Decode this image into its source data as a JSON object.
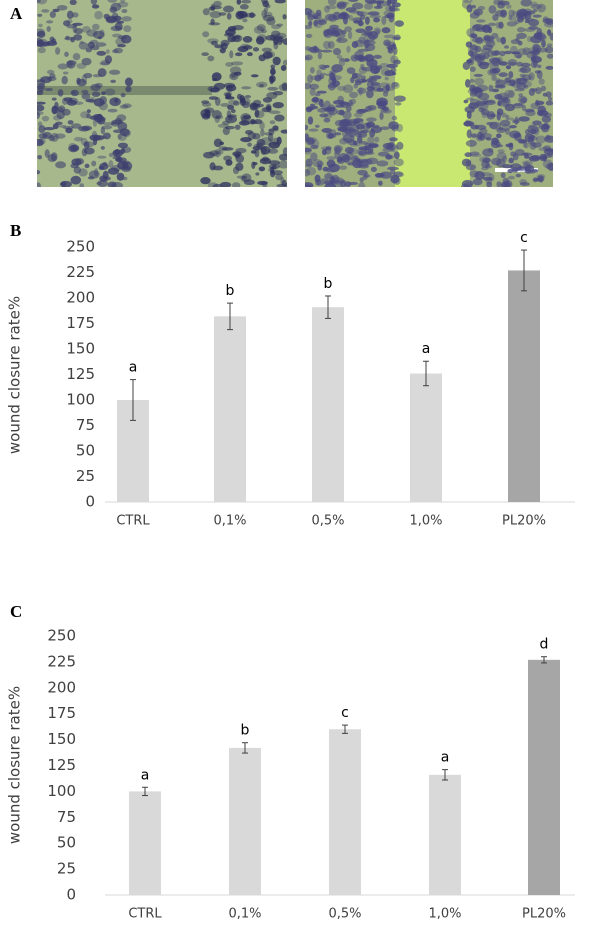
{
  "panel_labels": [
    "A",
    "B",
    "C"
  ],
  "chart_data": [
    {
      "type": "bar",
      "y_label": "wound closure rate%",
      "categories": [
        "CTRL",
        "0,1%",
        "0,5%",
        "1,0%",
        "PL20%"
      ],
      "values": [
        100,
        182,
        191,
        126,
        227
      ],
      "errors": [
        20,
        13,
        11,
        12,
        20
      ],
      "letters": [
        "a",
        "b",
        "b",
        "a",
        "c"
      ],
      "colors": [
        "#d9d9d9",
        "#d9d9d9",
        "#d9d9d9",
        "#d9d9d9",
        "#a6a6a6"
      ],
      "ylim": [
        0,
        250
      ],
      "yticks": [
        0,
        25,
        50,
        75,
        100,
        125,
        150,
        175,
        200,
        225,
        250
      ],
      "grid": false
    },
    {
      "type": "bar",
      "y_label": "wound closure rate%",
      "categories": [
        "CTRL",
        "0,1%",
        "0,5%",
        "1,0%",
        "PL20%"
      ],
      "values": [
        100,
        142,
        160,
        116,
        227
      ],
      "errors": [
        4,
        5,
        4,
        5,
        3
      ],
      "letters": [
        "a",
        "b",
        "c",
        "a",
        "d"
      ],
      "colors": [
        "#d9d9d9",
        "#d9d9d9",
        "#d9d9d9",
        "#d9d9d9",
        "#a6a6a6"
      ],
      "ylim": [
        0,
        250
      ],
      "yticks": [
        0,
        25,
        50,
        75,
        100,
        125,
        150,
        175,
        200,
        225,
        250
      ],
      "grid": false
    }
  ]
}
